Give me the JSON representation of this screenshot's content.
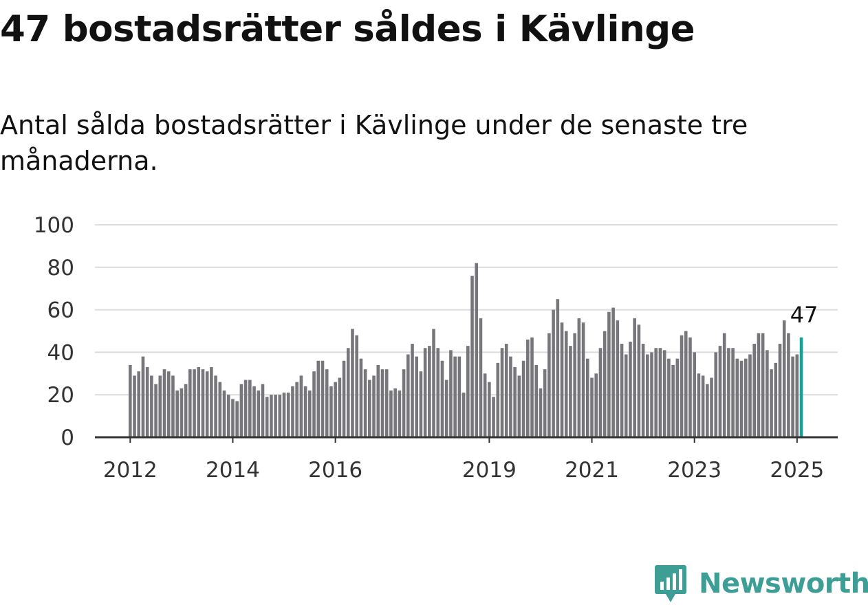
{
  "headline": "47 bostadsrätter såldes i Kävlinge",
  "subtitle": "Antal sålda bostadsrätter i Kävlinge under de senaste tre månaderna.",
  "brand": {
    "name": "Newsworthy",
    "color": "#3d9e96"
  },
  "colors": {
    "bar": "#77767b",
    "highlight": "#14a39a",
    "grid": "#dcdcdc",
    "axis": "#333333"
  },
  "chart_data": {
    "type": "bar",
    "start": "2012-01",
    "interval": "month",
    "ylim": [
      0,
      100
    ],
    "yticks": [
      0,
      20,
      40,
      60,
      80,
      100
    ],
    "xticks": [
      "2012",
      "2014",
      "2016",
      "2019",
      "2021",
      "2023",
      "2025"
    ],
    "grid": true,
    "highlight_last": true,
    "last_label": "47",
    "values": [
      34,
      29,
      31,
      38,
      33,
      29,
      25,
      29,
      32,
      31,
      29,
      22,
      23,
      25,
      32,
      32,
      33,
      32,
      31,
      33,
      29,
      26,
      22,
      20,
      18,
      17,
      25,
      27,
      27,
      24,
      22,
      25,
      19,
      20,
      20,
      20,
      21,
      21,
      24,
      26,
      29,
      24,
      22,
      31,
      36,
      36,
      32,
      24,
      26,
      28,
      36,
      42,
      51,
      48,
      37,
      32,
      27,
      29,
      34,
      32,
      32,
      22,
      23,
      22,
      32,
      39,
      44,
      38,
      31,
      42,
      43,
      51,
      42,
      36,
      27,
      41,
      38,
      38,
      21,
      43,
      76,
      82,
      56,
      30,
      26,
      19,
      35,
      42,
      44,
      38,
      33,
      29,
      36,
      46,
      47,
      34,
      23,
      32,
      49,
      60,
      65,
      54,
      50,
      43,
      49,
      56,
      54,
      37,
      28,
      30,
      42,
      50,
      59,
      61,
      55,
      44,
      39,
      45,
      56,
      53,
      44,
      39,
      40,
      42,
      42,
      41,
      37,
      34,
      37,
      48,
      50,
      47,
      40,
      30,
      29,
      25,
      28,
      40,
      43,
      49,
      42,
      42,
      37,
      36,
      37,
      39,
      44,
      49,
      49,
      41,
      32,
      35,
      44,
      55,
      49,
      38,
      39,
      47
    ]
  }
}
